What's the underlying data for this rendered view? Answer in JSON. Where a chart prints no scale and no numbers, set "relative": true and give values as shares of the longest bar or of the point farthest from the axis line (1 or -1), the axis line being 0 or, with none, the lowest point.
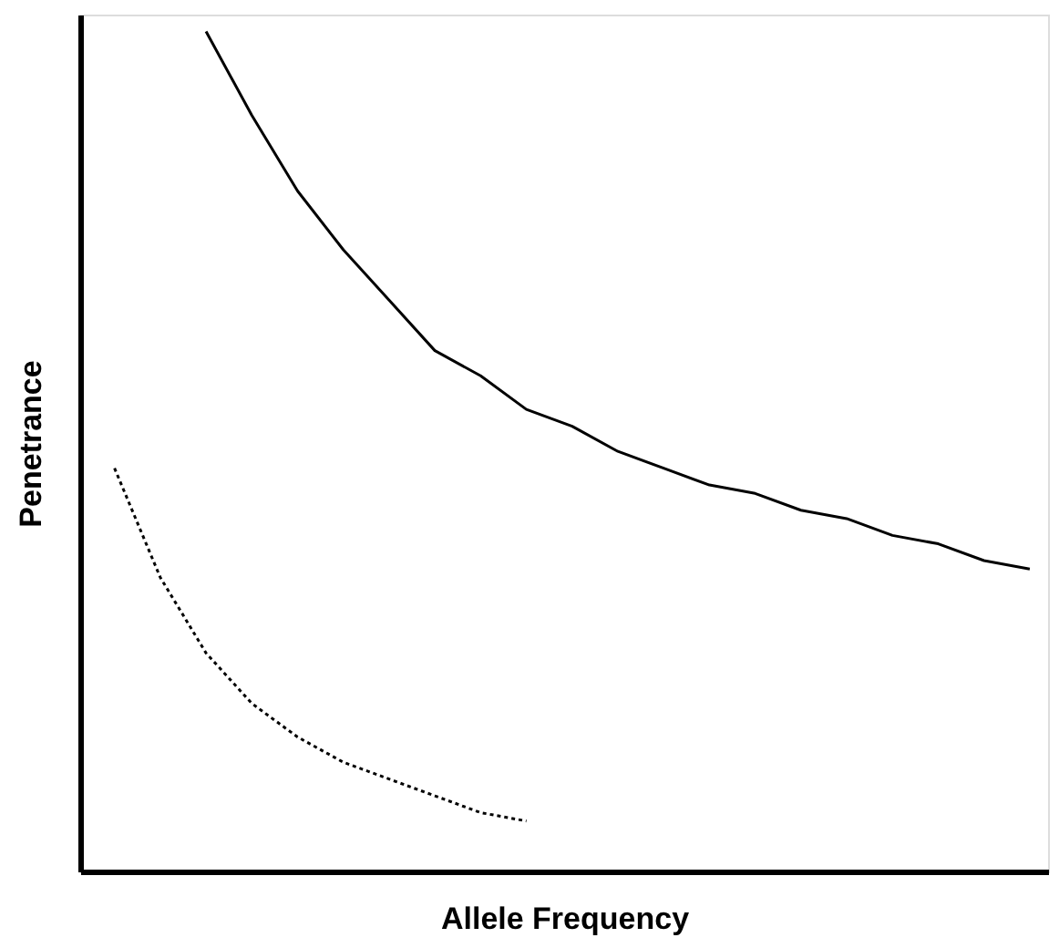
{
  "chart_data": {
    "type": "line",
    "xlabel": "Allele Frequency",
    "ylabel": "Penetrance",
    "relative": true,
    "tick_labels": false,
    "grid": false,
    "marker": "none",
    "categories": [
      null,
      null,
      null,
      null,
      null,
      null,
      null,
      null,
      null,
      null,
      null,
      null,
      null,
      null,
      null,
      null,
      null,
      null,
      null,
      null,
      null
    ],
    "series": [
      {
        "color": "#000000",
        "line_style": "solid",
        "values": [
          null,
          null,
          1.0,
          0.9,
          0.81,
          0.74,
          0.68,
          0.62,
          0.59,
          0.55,
          0.53,
          0.5,
          0.48,
          0.46,
          0.45,
          0.43,
          0.42,
          0.4,
          0.39,
          0.37,
          0.36
        ]
      },
      {
        "color": "#000000",
        "line_style": "dotted",
        "values": [
          0.48,
          0.35,
          0.26,
          0.2,
          0.16,
          0.13,
          0.11,
          0.09,
          0.07,
          0.06,
          null,
          null,
          null,
          null,
          null,
          null,
          null,
          null,
          null,
          null,
          null
        ]
      }
    ]
  }
}
